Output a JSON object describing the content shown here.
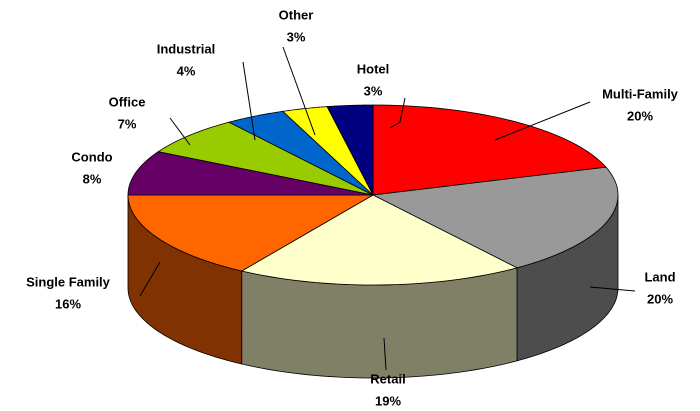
{
  "chart_data": {
    "type": "pie3d",
    "categories": [
      "Multi-Family",
      "Land",
      "Retail",
      "Single Family",
      "Condo",
      "Office",
      "Industrial",
      "Other",
      "Hotel"
    ],
    "values": [
      20,
      20,
      19,
      16,
      8,
      7,
      4,
      3,
      3
    ],
    "value_labels": [
      "20%",
      "20%",
      "19%",
      "16%",
      "8%",
      "7%",
      "4%",
      "3%",
      "3%"
    ],
    "colors": [
      "#ff0000",
      "#999999",
      "#ffffcc",
      "#ff6600",
      "#660066",
      "#99cc00",
      "#0066cc",
      "#ffff00",
      "#000080"
    ]
  }
}
